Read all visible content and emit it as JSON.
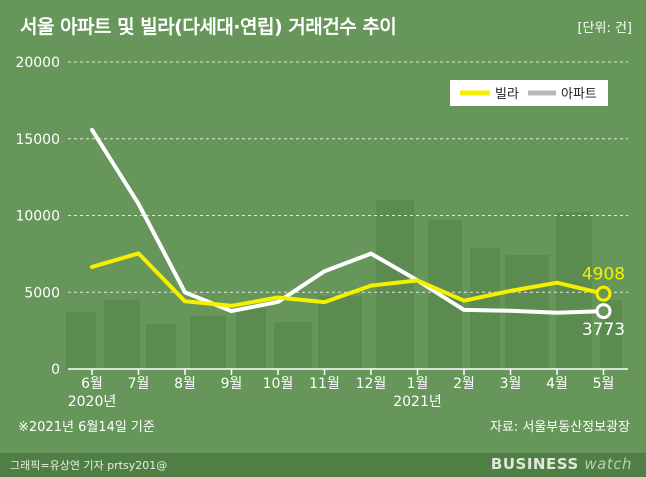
{
  "header": {
    "title": "서울 아파트 및 빌라(다세대·연립) 거래건수 추이",
    "unit": "[단위: 건]"
  },
  "footer": {
    "note": "※2021년 6월14일 기준",
    "source": "자료: 서울부동산정보광장",
    "credit": "그래픽=유상연 기자 prtsy201@",
    "brand_main": "BUSINESS",
    "brand_sub": "watch"
  },
  "colors": {
    "background": "#669659",
    "villa": "#f5f000",
    "apartment": "#ffffff",
    "buildings": "#5a8a4f"
  },
  "chart_data": {
    "type": "line",
    "categories": [
      "6월",
      "7월",
      "8월",
      "9월",
      "10월",
      "11월",
      "12월",
      "1월",
      "2월",
      "3월",
      "4월",
      "5월"
    ],
    "year_labels": [
      {
        "index": 0,
        "label": "2020년"
      },
      {
        "index": 7,
        "label": "2021년"
      }
    ],
    "ylim": [
      0,
      20000
    ],
    "yticks": [
      "0",
      "5000",
      "10000",
      "15000",
      "20000"
    ],
    "legend_position": "top-right",
    "grid": true,
    "series": [
      {
        "name": "빌라",
        "color": "#f5f000",
        "values": [
          6650,
          7530,
          4410,
          4120,
          4660,
          4360,
          5430,
          5770,
          4450,
          5090,
          5620,
          4908
        ]
      },
      {
        "name": "아파트",
        "color": "#ffffff",
        "values": [
          15580,
          10760,
          4990,
          3770,
          4370,
          6370,
          7520,
          5770,
          3850,
          3790,
          3660,
          3773
        ]
      }
    ],
    "end_labels": [
      {
        "series": 0,
        "text": "4908"
      },
      {
        "series": 1,
        "text": "3773"
      }
    ]
  }
}
